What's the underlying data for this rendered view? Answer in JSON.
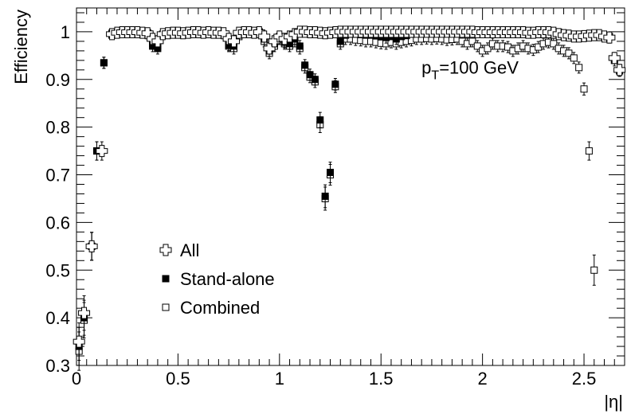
{
  "chart_data": {
    "type": "scatter",
    "title": "",
    "xlabel": "|η|",
    "ylabel": "Efficiency",
    "xlim": [
      0,
      2.7
    ],
    "ylim": [
      0.3,
      1.05
    ],
    "x_ticks": [
      "0",
      "0.5",
      "1",
      "1.5",
      "2",
      "2.5"
    ],
    "x_tick_values": [
      0,
      0.5,
      1,
      1.5,
      2,
      2.5
    ],
    "y_ticks": [
      "0.3",
      "0.4",
      "0.5",
      "0.6",
      "0.7",
      "0.8",
      "0.9",
      "1"
    ],
    "y_tick_values": [
      0.3,
      0.4,
      0.5,
      0.6,
      0.7,
      0.8,
      0.9,
      1.0
    ],
    "annotation": {
      "main": "p",
      "sub": "T",
      "rest": "=100 GeV"
    },
    "legend_position": "center-left",
    "series": [
      {
        "name": "All",
        "marker": "open-cross",
        "x": [
          0.0125,
          0.0375,
          0.075,
          0.125,
          0.175,
          0.2,
          0.225,
          0.25,
          0.275,
          0.3,
          0.325,
          0.35,
          0.375,
          0.4,
          0.425,
          0.45,
          0.475,
          0.5,
          0.525,
          0.55,
          0.575,
          0.6,
          0.625,
          0.65,
          0.675,
          0.7,
          0.725,
          0.75,
          0.775,
          0.8,
          0.825,
          0.85,
          0.875,
          0.9,
          0.925,
          0.95,
          0.975,
          1.0,
          1.025,
          1.05,
          1.075,
          1.1,
          1.125,
          1.15,
          1.175,
          1.2,
          1.225,
          1.25,
          1.275,
          1.3,
          1.325,
          1.35,
          1.375,
          1.4,
          1.425,
          1.45,
          1.475,
          1.5,
          1.525,
          1.55,
          1.575,
          1.6,
          1.625,
          1.65,
          1.675,
          1.7,
          1.725,
          1.75,
          1.775,
          1.8,
          1.825,
          1.85,
          1.875,
          1.9,
          1.925,
          1.95,
          1.975,
          2.0,
          2.025,
          2.05,
          2.075,
          2.1,
          2.125,
          2.15,
          2.175,
          2.2,
          2.225,
          2.25,
          2.275,
          2.3,
          2.325,
          2.35,
          2.375,
          2.4,
          2.425,
          2.45,
          2.475,
          2.5,
          2.525,
          2.55,
          2.575,
          2.6,
          2.625,
          2.65,
          2.675
        ],
        "y": [
          0.35,
          0.41,
          0.55,
          0.75,
          0.995,
          0.998,
          0.999,
          0.999,
          0.999,
          0.999,
          0.998,
          0.997,
          0.985,
          0.98,
          0.995,
          0.997,
          0.998,
          0.998,
          0.997,
          0.998,
          0.999,
          0.999,
          0.998,
          0.999,
          0.998,
          0.998,
          0.997,
          0.985,
          0.98,
          0.998,
          0.999,
          0.999,
          0.998,
          0.999,
          0.99,
          0.965,
          0.98,
          0.99,
          0.985,
          0.99,
          0.995,
          1.0,
          1.0,
          0.999,
          0.999,
          0.998,
          0.997,
          0.998,
          0.999,
          1.0,
          1.0,
          1.0,
          1.0,
          1.0,
          1.0,
          1.0,
          1.0,
          1.0,
          1.0,
          1.0,
          1.0,
          1.0,
          1.0,
          1.0,
          1.0,
          1.0,
          1.0,
          1.0,
          1.0,
          1.0,
          1.0,
          1.0,
          1.0,
          1.0,
          1.0,
          1.0,
          0.999,
          0.999,
          0.999,
          0.999,
          0.999,
          0.999,
          0.999,
          0.999,
          0.999,
          0.999,
          0.998,
          0.998,
          0.999,
          0.999,
          0.999,
          0.998,
          0.995,
          0.993,
          0.992,
          0.99,
          0.99,
          0.991,
          0.992,
          0.993,
          0.993,
          0.99,
          0.988,
          0.945,
          0.92
        ]
      },
      {
        "name": "Stand-alone",
        "marker": "filled-square",
        "x": [
          0.0125,
          0.0375,
          0.075,
          0.1,
          0.135,
          0.175,
          0.2,
          0.225,
          0.25,
          0.275,
          0.3,
          0.325,
          0.35,
          0.375,
          0.4,
          0.425,
          0.45,
          0.475,
          0.5,
          0.525,
          0.55,
          0.575,
          0.6,
          0.625,
          0.65,
          0.675,
          0.7,
          0.725,
          0.75,
          0.775,
          0.8,
          0.825,
          0.85,
          0.875,
          0.9,
          0.925,
          0.95,
          0.975,
          1.0,
          1.025,
          1.05,
          1.075,
          1.1,
          1.125,
          1.15,
          1.175,
          1.2,
          1.225,
          1.25,
          1.275,
          1.3,
          1.325,
          1.35,
          1.375,
          1.4,
          1.425,
          1.45,
          1.475,
          1.5,
          1.525,
          1.55,
          1.575,
          1.6,
          1.625,
          1.65,
          1.675,
          1.7,
          1.725,
          1.75,
          1.775,
          1.8,
          1.825,
          1.85,
          1.875,
          1.9,
          1.925,
          1.95,
          1.975,
          2.0,
          2.025,
          2.05,
          2.075,
          2.1,
          2.125,
          2.15,
          2.175,
          2.2,
          2.225,
          2.25,
          2.275,
          2.3,
          2.325,
          2.35,
          2.375,
          2.4,
          2.425,
          2.45,
          2.475,
          2.5,
          2.525,
          2.55,
          2.575,
          2.6,
          2.625,
          2.65,
          2.675
        ],
        "y": [
          0.34,
          0.4,
          0.55,
          0.75,
          0.935,
          0.997,
          0.999,
          1.0,
          1.0,
          1.0,
          1.0,
          0.998,
          0.998,
          0.97,
          0.965,
          0.995,
          0.997,
          0.998,
          0.997,
          0.998,
          0.998,
          0.999,
          0.998,
          0.999,
          0.999,
          0.998,
          0.998,
          0.995,
          0.972,
          0.97,
          0.995,
          0.997,
          0.998,
          0.998,
          1.0,
          0.985,
          0.96,
          0.975,
          0.99,
          0.978,
          0.975,
          0.985,
          0.97,
          0.93,
          0.91,
          0.9,
          0.815,
          0.655,
          0.705,
          0.89,
          0.98,
          0.993,
          0.995,
          0.995,
          0.994,
          0.993,
          0.993,
          0.992,
          0.99,
          0.988,
          0.99,
          0.985,
          0.99,
          0.992,
          0.995,
          0.996,
          0.997,
          0.998,
          0.998,
          0.998,
          0.997,
          0.996,
          0.997,
          0.998,
          0.998,
          0.998,
          0.997,
          0.996,
          0.997,
          0.998,
          0.999,
          0.999,
          0.999,
          0.998,
          0.998,
          0.997,
          0.997,
          0.996,
          0.997,
          0.998,
          0.998,
          0.999,
          1.0,
          0.999,
          0.995,
          0.993,
          0.992,
          0.99,
          0.991,
          0.992,
          0.993,
          0.992,
          0.99,
          0.99,
          0.94,
          0.918
        ]
      },
      {
        "name": "Combined",
        "marker": "open-square",
        "x": [
          0.0125,
          0.0375,
          0.075,
          0.1,
          0.135,
          0.175,
          0.2,
          0.225,
          0.25,
          0.275,
          0.3,
          0.325,
          0.35,
          0.375,
          0.4,
          0.425,
          0.45,
          0.475,
          0.5,
          0.525,
          0.55,
          0.575,
          0.6,
          0.625,
          0.65,
          0.675,
          0.7,
          0.725,
          0.75,
          0.775,
          0.8,
          0.825,
          0.85,
          0.875,
          0.9,
          0.925,
          0.95,
          0.975,
          1.0,
          1.025,
          1.05,
          1.075,
          1.1,
          1.125,
          1.15,
          1.175,
          1.2,
          1.225,
          1.25,
          1.275,
          1.3,
          1.325,
          1.35,
          1.375,
          1.4,
          1.425,
          1.45,
          1.475,
          1.5,
          1.525,
          1.55,
          1.575,
          1.6,
          1.625,
          1.65,
          1.675,
          1.7,
          1.725,
          1.75,
          1.775,
          1.8,
          1.825,
          1.85,
          1.875,
          1.9,
          1.925,
          1.95,
          1.975,
          2.0,
          2.025,
          2.05,
          2.075,
          2.1,
          2.125,
          2.15,
          2.175,
          2.2,
          2.225,
          2.25,
          2.275,
          2.3,
          2.325,
          2.35,
          2.375,
          2.4,
          2.425,
          2.45,
          2.475,
          2.5,
          2.525,
          2.55
        ],
        "y": [
          0.33,
          0.395,
          0.55,
          0.75,
          0.935,
          0.993,
          0.997,
          0.998,
          0.999,
          0.999,
          0.998,
          0.997,
          0.997,
          0.975,
          0.97,
          0.993,
          0.995,
          0.996,
          0.995,
          0.996,
          0.997,
          0.998,
          0.997,
          0.998,
          0.998,
          0.997,
          0.996,
          0.993,
          0.97,
          0.965,
          0.99,
          0.995,
          0.996,
          0.996,
          0.998,
          0.98,
          0.955,
          0.97,
          0.985,
          0.975,
          0.97,
          0.98,
          0.965,
          0.925,
          0.905,
          0.895,
          0.805,
          0.65,
          0.7,
          0.885,
          0.975,
          0.985,
          0.985,
          0.983,
          0.982,
          0.98,
          0.98,
          0.978,
          0.976,
          0.975,
          0.978,
          0.975,
          0.978,
          0.98,
          0.982,
          0.985,
          0.985,
          0.986,
          0.985,
          0.986,
          0.985,
          0.983,
          0.984,
          0.985,
          0.98,
          0.975,
          0.98,
          0.97,
          0.96,
          0.965,
          0.975,
          0.97,
          0.97,
          0.968,
          0.96,
          0.965,
          0.97,
          0.965,
          0.962,
          0.968,
          0.975,
          0.978,
          0.975,
          0.965,
          0.96,
          0.955,
          0.945,
          0.925,
          0.88,
          0.75,
          0.5
        ]
      }
    ]
  }
}
